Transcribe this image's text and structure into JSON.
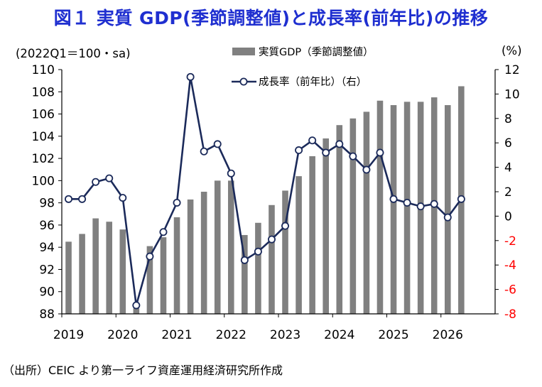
{
  "title": "図１ 実質 GDP(季節調整値)と成長率(前年比)の推移",
  "left_unit": "(2022Q1＝100・sa)",
  "right_unit": "(%)",
  "source": "（出所）CEIC より第一ライフ資産運用経済研究所作成",
  "colors": {
    "title": "#1f2fd0",
    "bar": "#808080",
    "line": "#1b2a5a",
    "negative_tick": "#ff0000"
  },
  "chart_data": {
    "type": "bar",
    "legend": [
      {
        "label": "実質GDP（季節調整値）",
        "kind": "bar"
      },
      {
        "label": "成長率（前年比）（右）",
        "kind": "line"
      }
    ],
    "x_tick_labels": [
      "2019",
      "2020",
      "2021",
      "2022",
      "2023",
      "2024",
      "2025",
      "2026"
    ],
    "y_left": {
      "min": 88,
      "max": 110,
      "ticks": [
        110,
        108,
        106,
        104,
        102,
        100,
        98,
        96,
        94,
        92,
        90,
        88
      ]
    },
    "y_right": {
      "min": -8,
      "max": 12,
      "ticks": [
        12,
        10,
        8,
        6,
        4,
        2,
        0,
        -2,
        -4,
        -6,
        -8
      ]
    },
    "quarters": [
      "2019Q1",
      "2019Q2",
      "2019Q3",
      "2019Q4",
      "2020Q1",
      "2020Q2",
      "2020Q3",
      "2020Q4",
      "2021Q1",
      "2021Q2",
      "2021Q3",
      "2021Q4",
      "2022Q1",
      "2022Q2",
      "2022Q3",
      "2022Q4",
      "2023Q1",
      "2023Q2",
      "2023Q3",
      "2023Q4",
      "2024Q1",
      "2024Q2",
      "2024Q3",
      "2024Q4",
      "2025Q1",
      "2025Q2",
      "2025Q3",
      "2025Q4",
      "2026Q1",
      "2026Q2",
      "2026Q3",
      "2026Q4"
    ],
    "series": [
      {
        "name": "実質GDP（季節調整値）",
        "axis": "left",
        "type": "bar",
        "values": [
          94.5,
          95.2,
          96.6,
          96.3,
          95.6,
          88.5,
          94.1,
          94.9,
          96.7,
          98.3,
          99.0,
          100.0,
          100.0,
          95.1,
          96.2,
          97.8,
          99.1,
          100.4,
          102.2,
          103.8,
          105.0,
          105.6,
          106.2,
          107.2,
          106.8,
          107.1,
          107.1,
          107.5,
          106.8,
          108.5
        ]
      },
      {
        "name": "成長率（前年比）（右）",
        "axis": "right",
        "type": "line",
        "values": [
          1.4,
          1.4,
          2.8,
          3.1,
          1.5,
          -7.3,
          -3.3,
          -1.3,
          1.1,
          11.4,
          5.3,
          5.9,
          3.5,
          -3.6,
          -2.9,
          -1.9,
          -0.8,
          5.4,
          6.2,
          5.2,
          5.9,
          4.9,
          3.8,
          5.2,
          1.4,
          1.1,
          0.8,
          1.0,
          -0.1,
          1.4
        ]
      }
    ]
  }
}
